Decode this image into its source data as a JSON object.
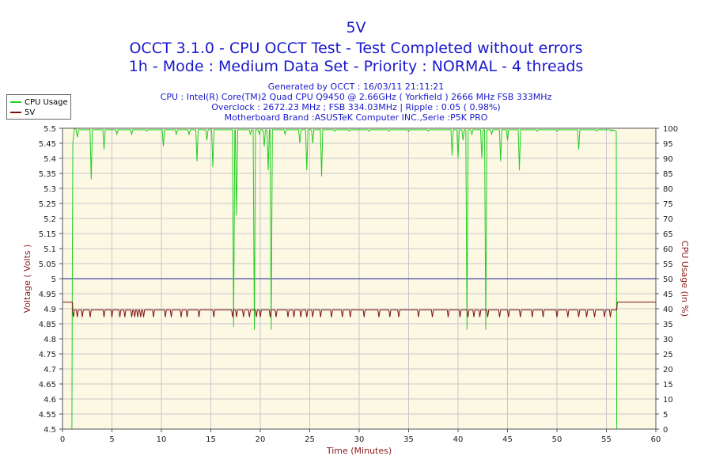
{
  "header": {
    "title": "5V",
    "line1": "OCCT 3.1.0 - CPU OCCT Test - Test Completed without errors",
    "line2": "1h - Mode : Medium Data Set - Priority : NORMAL - 4 threads",
    "generated": "Generated by OCCT : 16/03/11 21:11:21",
    "cpu": "CPU : Intel(R) Core(TM)2 Quad CPU Q9450 @ 2.66GHz ( Yorkfield ) 2666 MHz FSB 333MHz",
    "overclock": "Overclock : 2672.23 MHz ; FSB 334.03MHz | Ripple : 0.05 ( 0.98%)",
    "motherboard": "Motherboard Brand :ASUSTeK Computer INC.,Serie :P5K PRO"
  },
  "legend": [
    {
      "name": "CPU Usage",
      "color": "#22cc22"
    },
    {
      "name": "5V",
      "color": "#7a1010"
    }
  ],
  "colors": {
    "plot_bg": "#fdf8e4",
    "grid": "#c8c8c8",
    "reference": "#1a1a99"
  },
  "chart_data": {
    "type": "line",
    "xlabel": "Time (Minutes)",
    "ylabel_left": "Voltage ( Volts )",
    "ylabel_right": "CPU Usage (in %)",
    "xlim": [
      0,
      60
    ],
    "ylim_left": [
      4.5,
      5.5
    ],
    "ylim_right": [
      0,
      100
    ],
    "x_ticks": [
      0,
      5,
      10,
      15,
      20,
      25,
      30,
      35,
      40,
      45,
      50,
      55,
      60
    ],
    "y_left_ticks": [
      "4.5",
      "4.55",
      "4.6",
      "4.65",
      "4.7",
      "4.75",
      "4.8",
      "4.85",
      "4.9",
      "4.95",
      "5",
      "5.05",
      "5.1",
      "5.15",
      "5.2",
      "5.25",
      "5.3",
      "5.35",
      "5.4",
      "5.45",
      "5.5"
    ],
    "y_right_ticks": [
      0,
      5,
      10,
      15,
      20,
      25,
      30,
      35,
      40,
      45,
      50,
      55,
      60,
      65,
      70,
      75,
      80,
      85,
      90,
      95,
      100
    ],
    "grid": true,
    "reference_line": {
      "axis": "left",
      "value": 5.0
    },
    "series": [
      {
        "name": "5V",
        "axis": "left",
        "color": "#7a1010",
        "baseline": 4.896,
        "start": {
          "x": [
            0,
            1
          ],
          "value": 4.922
        },
        "end": {
          "x": [
            56.1,
            60
          ],
          "value": 4.922
        },
        "dips": [
          1.1,
          1.5,
          2.0,
          2.8,
          4.2,
          5.0,
          5.8,
          6.3,
          7.0,
          7.3,
          7.6,
          7.9,
          8.2,
          9.2,
          10.4,
          11.0,
          12.0,
          12.6,
          13.8,
          15.3,
          17.2,
          17.6,
          18.3,
          18.9,
          19.6,
          20.0,
          21.0,
          21.6,
          22.8,
          23.4,
          24.1,
          24.7,
          25.3,
          26.1,
          27.2,
          28.3,
          29.1,
          30.5,
          32.0,
          33.1,
          34.0,
          36.0,
          37.4,
          39.0,
          40.2,
          41.0,
          41.6,
          42.2,
          43.0,
          44.2,
          45.1,
          46.3,
          47.5,
          48.6,
          50.0,
          51.1,
          52.2,
          53.0,
          53.8,
          54.8,
          55.4
        ],
        "dip_value": 4.872
      },
      {
        "name": "CPU Usage",
        "axis": "right",
        "color": "#22cc22",
        "baseline": 99.5,
        "points": [
          [
            0.95,
            0
          ],
          [
            1.0,
            60
          ],
          [
            1.05,
            95
          ],
          [
            1.2,
            100
          ],
          [
            56.0,
            99
          ],
          [
            56.05,
            0
          ]
        ],
        "dips": [
          [
            1.5,
            97
          ],
          [
            2.9,
            83
          ],
          [
            4.2,
            93
          ],
          [
            5.5,
            98
          ],
          [
            7.0,
            98
          ],
          [
            8.5,
            99
          ],
          [
            10.2,
            94
          ],
          [
            11.5,
            98
          ],
          [
            12.8,
            98
          ],
          [
            13.6,
            89
          ],
          [
            14.6,
            96
          ],
          [
            15.2,
            87
          ],
          [
            17.3,
            34
          ],
          [
            17.6,
            71
          ],
          [
            19.0,
            98
          ],
          [
            19.4,
            33
          ],
          [
            19.9,
            98
          ],
          [
            20.4,
            94
          ],
          [
            20.8,
            86
          ],
          [
            21.1,
            33
          ],
          [
            22.5,
            98
          ],
          [
            24.0,
            95
          ],
          [
            24.7,
            86
          ],
          [
            25.3,
            95
          ],
          [
            26.2,
            84
          ],
          [
            27.5,
            99
          ],
          [
            29.0,
            99
          ],
          [
            31.0,
            99
          ],
          [
            33.0,
            99
          ],
          [
            35.0,
            99
          ],
          [
            37.0,
            99
          ],
          [
            39.4,
            91
          ],
          [
            40.0,
            90
          ],
          [
            40.5,
            96
          ],
          [
            40.9,
            33
          ],
          [
            41.4,
            98
          ],
          [
            42.4,
            90
          ],
          [
            42.8,
            33
          ],
          [
            43.4,
            98
          ],
          [
            44.3,
            89
          ],
          [
            45.0,
            96
          ],
          [
            46.2,
            86
          ],
          [
            48.0,
            99
          ],
          [
            50.0,
            99
          ],
          [
            52.2,
            93
          ],
          [
            54.0,
            99
          ],
          [
            55.5,
            99
          ]
        ]
      }
    ]
  }
}
